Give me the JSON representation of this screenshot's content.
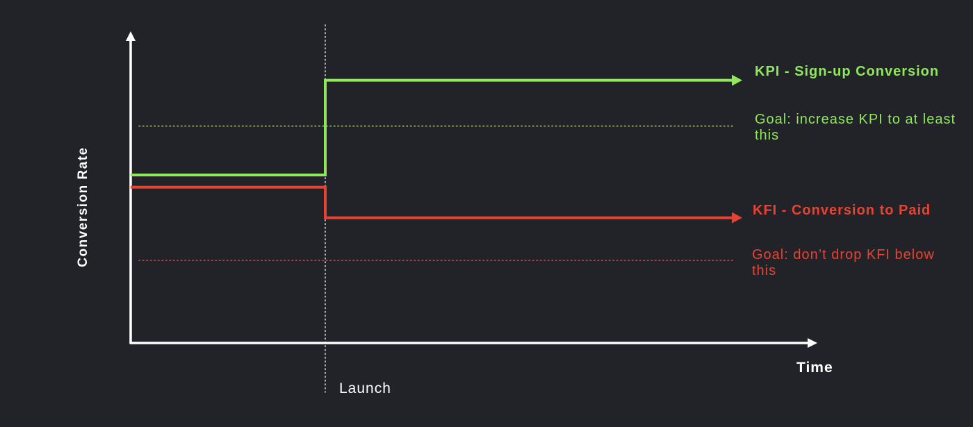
{
  "chart_data": {
    "type": "line",
    "xlabel": "Time",
    "ylabel": "Conversion Rate",
    "grid": false,
    "x_range": [
      0,
      1
    ],
    "y_range": [
      0,
      1
    ],
    "events": [
      {
        "label": "Launch",
        "x": 0.28
      }
    ],
    "series": [
      {
        "name": "KPI - Sign-up Conversion",
        "color": "#8fe85a",
        "points": [
          [
            0,
            0.55
          ],
          [
            0.28,
            0.55
          ],
          [
            0.28,
            0.86
          ],
          [
            0.88,
            0.86
          ]
        ]
      },
      {
        "name": "KFI - Conversion to Paid",
        "color": "#e84332",
        "points": [
          [
            0,
            0.51
          ],
          [
            0.28,
            0.51
          ],
          [
            0.28,
            0.41
          ],
          [
            0.88,
            0.41
          ]
        ]
      }
    ],
    "goals": [
      {
        "label": "Goal: increase KPI to at least this",
        "y": 0.71,
        "color": "#8fe85a"
      },
      {
        "label": "Goal: don’t drop KFI below this",
        "y": 0.27,
        "color": "#e84332"
      }
    ],
    "axis_color": "#ffffff",
    "background": "#222328"
  }
}
